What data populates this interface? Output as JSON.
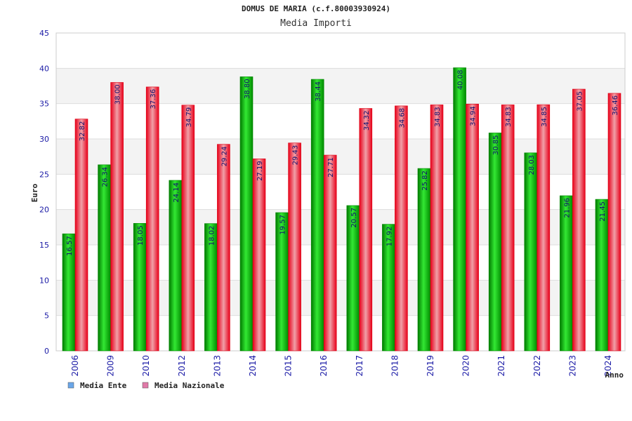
{
  "chart_data": {
    "type": "bar",
    "title": "DOMUS DE MARIA (c.f.80003930924)",
    "subtitle": "Media Importi",
    "ylabel": "Euro",
    "xlabel": "Anno",
    "ylim": [
      0,
      45
    ],
    "yticks": [
      "0",
      "5",
      "10",
      "15",
      "20",
      "25",
      "30",
      "35",
      "40",
      "45"
    ],
    "grid": true,
    "legend_position": "bottom-left",
    "categories": [
      "2006",
      "2009",
      "2010",
      "2012",
      "2013",
      "2014",
      "2015",
      "2016",
      "2017",
      "2018",
      "2019",
      "2020",
      "2021",
      "2022",
      "2023",
      "2024"
    ],
    "series": [
      {
        "name": "Media Ente",
        "color": "#00bb00",
        "legend_color": "#6aa6e8",
        "values": [
          16.57,
          26.34,
          18.05,
          24.14,
          18.02,
          38.8,
          19.57,
          38.44,
          20.57,
          17.92,
          25.82,
          40.08,
          30.85,
          28.03,
          21.96,
          21.45
        ],
        "labels": [
          "16.57",
          "26.34",
          "18.05",
          "24.14",
          "18.02",
          "38.80",
          "19.57",
          "38.44",
          "20.57",
          "17.92",
          "25.82",
          "40.08",
          "30.85",
          "28.03",
          "21.96",
          "21.45"
        ]
      },
      {
        "name": "Media Nazionale",
        "color": "#ee1122",
        "legend_color": "#e07aa8",
        "values": [
          32.82,
          38.0,
          37.36,
          34.79,
          29.24,
          27.19,
          29.43,
          27.71,
          34.32,
          34.68,
          34.83,
          34.94,
          34.83,
          34.85,
          37.05,
          36.46
        ],
        "labels": [
          "32.82",
          "38.00",
          "37.36",
          "34.79",
          "29.24",
          "27.19",
          "29.43",
          "27.71",
          "34.32",
          "34.68",
          "34.83",
          "34.94",
          "34.83",
          "34.85",
          "37.05",
          "36.46"
        ]
      }
    ]
  }
}
